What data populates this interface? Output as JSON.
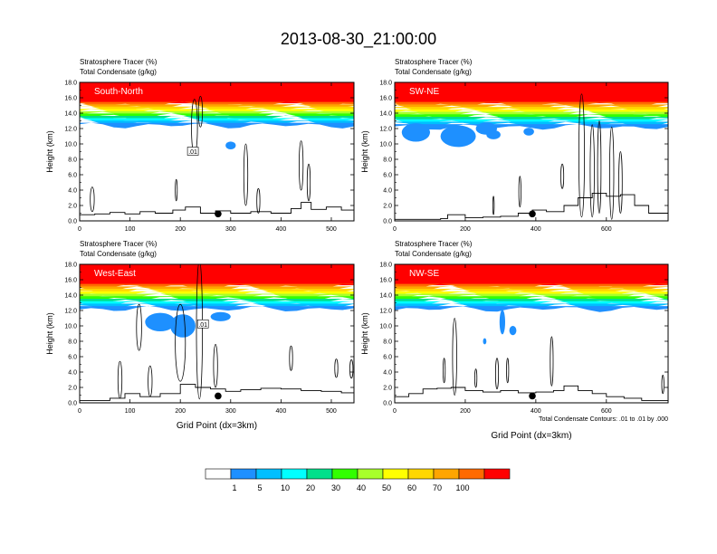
{
  "title": "2013-08-30_21:00:00",
  "chart_data": {
    "type": "heatmap",
    "description_labels": [
      "Stratosphere Tracer   (%)",
      "Total Condensate   (g/kg)"
    ],
    "ylabel": "Height (km)",
    "ylim": [
      0,
      18
    ],
    "yticks": [
      "0.0",
      "2.0",
      "4.0",
      "6.0",
      "8.0",
      "10.0",
      "12.0",
      "14.0",
      "16.0",
      "18.0"
    ],
    "xlabel": "Grid Point (dx=3km)",
    "panels": [
      {
        "name": "South-North",
        "xlim": [
          0,
          545
        ],
        "xticks": [
          0,
          100,
          200,
          300,
          400,
          500
        ],
        "xtick_labels": [
          "0",
          "100",
          "200",
          "300",
          "400",
          "500"
        ],
        "marker_x": 275,
        "contour_label": ".01",
        "contour_label_x": 225,
        "contour_label_y": 9.0,
        "tracer_base_km": 12.4,
        "tracer_full_km": 15.4,
        "show_xlabel": false,
        "terrain": [
          [
            0,
            0.8
          ],
          [
            30,
            0.9
          ],
          [
            60,
            1.1
          ],
          [
            90,
            0.9
          ],
          [
            120,
            1.2
          ],
          [
            150,
            1.0
          ],
          [
            185,
            1.4
          ],
          [
            210,
            1.8
          ],
          [
            240,
            1.0
          ],
          [
            270,
            1.3
          ],
          [
            300,
            1.0
          ],
          [
            340,
            1.2
          ],
          [
            380,
            1.0
          ],
          [
            420,
            1.6
          ],
          [
            440,
            2.4
          ],
          [
            460,
            1.5
          ],
          [
            490,
            1.8
          ],
          [
            520,
            1.4
          ],
          [
            545,
            1.6
          ]
        ],
        "contours": [
          [
            228,
            12.2,
            6,
            1.8
          ],
          [
            240,
            14.2,
            4,
            1.0
          ],
          [
            192,
            4.0,
            2,
            0.7
          ],
          [
            330,
            6.0,
            4,
            2.0
          ],
          [
            440,
            7.2,
            4,
            1.6
          ],
          [
            25,
            2.8,
            4,
            0.8
          ],
          [
            355,
            2.6,
            3,
            0.8
          ],
          [
            455,
            5.0,
            3,
            1.2
          ]
        ],
        "blobs": [
          [
            300,
            9.8,
            10,
            0.5
          ]
        ]
      },
      {
        "name": "SW-NE",
        "xlim": [
          0,
          775
        ],
        "xticks": [
          0,
          200,
          400,
          600
        ],
        "xtick_labels": [
          "0",
          "200",
          "400",
          "600"
        ],
        "marker_x": 390,
        "contour_label": "",
        "contour_label_x": 0,
        "contour_label_y": 0,
        "tracer_base_km": 12.2,
        "tracer_full_km": 15.4,
        "show_xlabel": false,
        "terrain": [
          [
            0,
            0.2
          ],
          [
            80,
            0.2
          ],
          [
            130,
            0.3
          ],
          [
            150,
            0.8
          ],
          [
            200,
            0.4
          ],
          [
            250,
            0.5
          ],
          [
            300,
            0.6
          ],
          [
            350,
            1.0
          ],
          [
            390,
            1.4
          ],
          [
            430,
            1.2
          ],
          [
            480,
            2.0
          ],
          [
            520,
            3.0
          ],
          [
            560,
            3.6
          ],
          [
            600,
            3.2
          ],
          [
            640,
            3.4
          ],
          [
            680,
            2.0
          ],
          [
            720,
            1.0
          ],
          [
            775,
            0.6
          ]
        ],
        "contours": [
          [
            560,
            6.5,
            6,
            3.0
          ],
          [
            580,
            7.0,
            5,
            3.0
          ],
          [
            615,
            6.2,
            6,
            3.0
          ],
          [
            640,
            5.0,
            5,
            2.0
          ],
          [
            530,
            8.5,
            8,
            4.0
          ],
          [
            475,
            5.8,
            4,
            0.8
          ],
          [
            355,
            3.8,
            3,
            1.0
          ],
          [
            280,
            2.0,
            2,
            0.6
          ]
        ],
        "blobs": [
          [
            60,
            11.5,
            40,
            1.2
          ],
          [
            180,
            11.0,
            50,
            1.4
          ],
          [
            260,
            12.0,
            30,
            0.8
          ],
          [
            280,
            11.2,
            20,
            0.6
          ],
          [
            380,
            11.6,
            15,
            0.5
          ]
        ]
      },
      {
        "name": "West-East",
        "xlim": [
          0,
          545
        ],
        "xticks": [
          0,
          100,
          200,
          300,
          400,
          500
        ],
        "xtick_labels": [
          "0",
          "100",
          "200",
          "300",
          "400",
          "500"
        ],
        "marker_x": 275,
        "contour_label": ".01",
        "contour_label_x": 245,
        "contour_label_y": 10.2,
        "tracer_base_km": 12.2,
        "tracer_full_km": 15.4,
        "show_xlabel": true,
        "terrain": [
          [
            0,
            0.3
          ],
          [
            30,
            0.3
          ],
          [
            60,
            0.6
          ],
          [
            90,
            1.2
          ],
          [
            120,
            0.8
          ],
          [
            160,
            1.2
          ],
          [
            200,
            2.4
          ],
          [
            230,
            2.0
          ],
          [
            260,
            1.8
          ],
          [
            290,
            1.5
          ],
          [
            320,
            1.7
          ],
          [
            360,
            1.9
          ],
          [
            400,
            1.8
          ],
          [
            440,
            1.6
          ],
          [
            480,
            1.5
          ],
          [
            520,
            1.3
          ],
          [
            545,
            1.2
          ]
        ],
        "contours": [
          [
            238,
            9.5,
            6,
            4.5
          ],
          [
            200,
            7.8,
            10,
            2.5
          ],
          [
            118,
            9.8,
            5,
            1.5
          ],
          [
            80,
            3.0,
            4,
            1.2
          ],
          [
            140,
            2.8,
            4,
            1.0
          ],
          [
            270,
            4.8,
            4,
            1.4
          ],
          [
            420,
            5.8,
            3,
            0.8
          ],
          [
            510,
            4.5,
            3,
            0.6
          ],
          [
            540,
            4.4,
            3,
            0.6
          ]
        ],
        "blobs": [
          [
            160,
            10.5,
            30,
            1.2
          ],
          [
            205,
            10.0,
            25,
            1.5
          ],
          [
            280,
            11.2,
            20,
            0.6
          ]
        ]
      },
      {
        "name": "NW-SE",
        "xlim": [
          0,
          775
        ],
        "xticks": [
          0,
          200,
          400,
          600
        ],
        "xtick_labels": [
          "0",
          "200",
          "400",
          "600"
        ],
        "marker_x": 390,
        "contour_label": "",
        "contour_label_x": 0,
        "contour_label_y": 0,
        "tracer_base_km": 12.2,
        "tracer_full_km": 15.4,
        "show_xlabel": true,
        "terrain": [
          [
            0,
            0.8
          ],
          [
            40,
            1.2
          ],
          [
            80,
            1.8
          ],
          [
            120,
            1.9
          ],
          [
            160,
            2.0
          ],
          [
            200,
            1.6
          ],
          [
            250,
            1.4
          ],
          [
            300,
            1.6
          ],
          [
            350,
            1.3
          ],
          [
            400,
            1.4
          ],
          [
            450,
            1.6
          ],
          [
            480,
            2.2
          ],
          [
            520,
            1.6
          ],
          [
            560,
            1.2
          ],
          [
            600,
            0.8
          ],
          [
            650,
            0.6
          ],
          [
            700,
            0.3
          ],
          [
            775,
            0.2
          ]
        ],
        "contours": [
          [
            170,
            6.0,
            6,
            2.5
          ],
          [
            290,
            3.8,
            4,
            1.0
          ],
          [
            445,
            5.4,
            4,
            1.6
          ],
          [
            140,
            4.2,
            3,
            0.8
          ],
          [
            320,
            4.2,
            3,
            0.8
          ],
          [
            230,
            3.2,
            3,
            0.6
          ],
          [
            760,
            2.4,
            3,
            0.6
          ]
        ],
        "blobs": [
          [
            305,
            10.5,
            8,
            1.6
          ],
          [
            335,
            9.4,
            10,
            0.6
          ],
          [
            255,
            8.0,
            5,
            0.4
          ]
        ]
      }
    ],
    "footnote": "Total Condensate Contours: .01 to .01 by .000",
    "legend": {
      "labels": [
        "1",
        "5",
        "10",
        "20",
        "30",
        "40",
        "50",
        "60",
        "70",
        "100"
      ],
      "colors": [
        "#ffffff",
        "#1e90ff",
        "#00bfff",
        "#00ffff",
        "#00e08b",
        "#32ff00",
        "#a8ff2a",
        "#ffff00",
        "#ffd700",
        "#ffa500",
        "#ff6a00",
        "#ff0000"
      ]
    },
    "tracer_band_colors": [
      "#1e90ff",
      "#00bfff",
      "#00ffff",
      "#00e08b",
      "#32ff00",
      "#a8ff2a",
      "#ffff00",
      "#ffd700",
      "#ffa500",
      "#ff6a00",
      "#ff0000"
    ]
  }
}
